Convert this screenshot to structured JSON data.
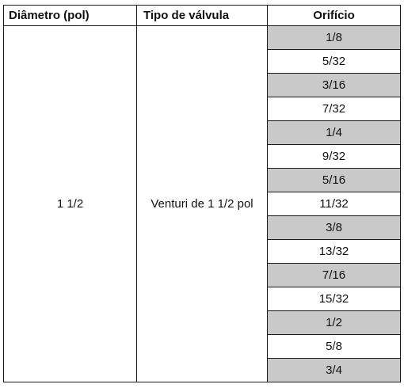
{
  "table": {
    "headers": [
      "Diâmetro (pol)",
      "Tipo de válvula",
      "Orifício"
    ],
    "diameter": "1 1/2",
    "valve_type": "Venturi de 1 1/2 pol",
    "orifices": [
      {
        "value": "1/8",
        "shaded": true
      },
      {
        "value": "5/32",
        "shaded": false
      },
      {
        "value": "3/16",
        "shaded": true
      },
      {
        "value": "7/32",
        "shaded": false
      },
      {
        "value": "1/4",
        "shaded": true
      },
      {
        "value": "9/32",
        "shaded": false
      },
      {
        "value": "5/16",
        "shaded": true
      },
      {
        "value": "11/32",
        "shaded": false
      },
      {
        "value": "3/8",
        "shaded": true
      },
      {
        "value": "13/32",
        "shaded": false
      },
      {
        "value": "7/16",
        "shaded": true
      },
      {
        "value": "15/32",
        "shaded": false
      },
      {
        "value": "1/2",
        "shaded": true
      },
      {
        "value": "5/8",
        "shaded": false
      },
      {
        "value": "3/4",
        "shaded": true
      }
    ],
    "shade_color": "#c9c9c9"
  }
}
